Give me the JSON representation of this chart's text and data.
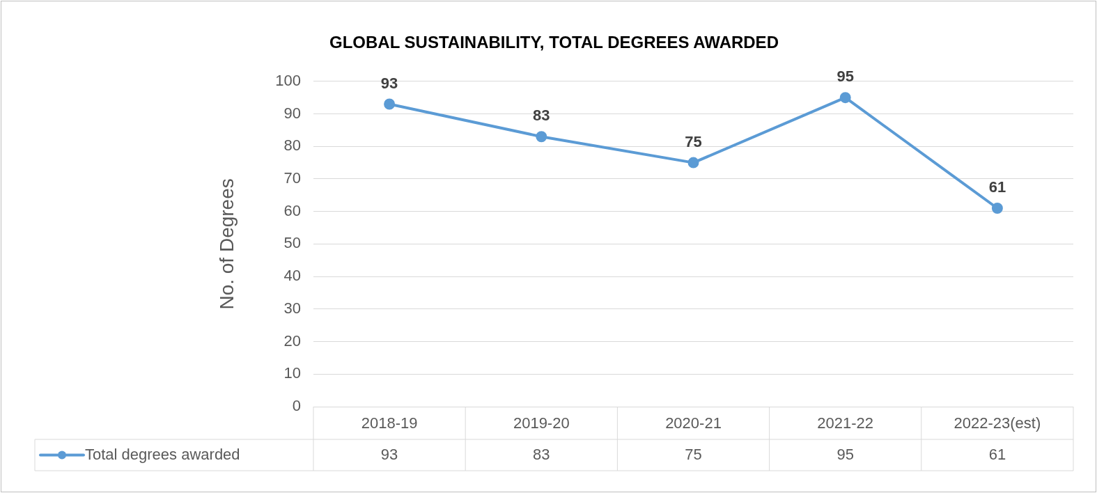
{
  "chart_data": {
    "type": "line",
    "title": "GLOBAL SUSTAINABILITY, TOTAL DEGREES AWARDED",
    "ylabel": "No. of Degrees",
    "categories": [
      "2018-19",
      "2019-20",
      "2020-21",
      "2021-22",
      "2022-23(est)"
    ],
    "series": [
      {
        "name": "Total degrees awarded",
        "color": "#5b9bd5",
        "values": [
          93,
          83,
          75,
          95,
          61
        ],
        "value_labels": [
          "93",
          "83",
          "75",
          "95",
          "61"
        ]
      }
    ],
    "annotations": [
      "93",
      "83",
      "75",
      "95",
      "61"
    ],
    "ylim": [
      0,
      100
    ],
    "yticks": [
      0,
      10,
      20,
      30,
      40,
      50,
      60,
      70,
      80,
      90,
      100
    ],
    "grid": "y",
    "legend": "bottom",
    "marker": "circle",
    "line_style": "solid",
    "data_labels": true
  }
}
